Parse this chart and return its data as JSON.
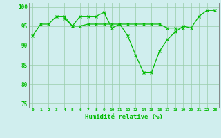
{
  "x": [
    0,
    1,
    2,
    3,
    4,
    5,
    6,
    7,
    8,
    9,
    10,
    11,
    12,
    13,
    14,
    15,
    16,
    17,
    18,
    19,
    20,
    21,
    22,
    23
  ],
  "line1": [
    92.5,
    95.5,
    95.5,
    97.5,
    97.5,
    95.0,
    97.5,
    97.5,
    97.5,
    98.5,
    94.5,
    95.5,
    92.5,
    87.5,
    83.0,
    83.0,
    88.5,
    91.5,
    93.5,
    95.0,
    94.5,
    97.5,
    99.0,
    99.0
  ],
  "line2": [
    null,
    null,
    null,
    null,
    97.0,
    95.0,
    95.0,
    95.5,
    95.5,
    95.5,
    95.5,
    95.5,
    95.5,
    95.5,
    95.5,
    95.5,
    95.5,
    94.5,
    94.5,
    94.5,
    null,
    null,
    null,
    null
  ],
  "ylim": [
    74,
    101
  ],
  "yticks": [
    75,
    80,
    85,
    90,
    95,
    100
  ],
  "xticks": [
    0,
    1,
    2,
    3,
    4,
    5,
    6,
    7,
    8,
    9,
    10,
    11,
    12,
    13,
    14,
    15,
    16,
    17,
    18,
    19,
    20,
    21,
    22,
    23
  ],
  "xlabel": "Humidité relative (%)",
  "line_color": "#00bb00",
  "bg_color": "#d0eeee",
  "grid_color": "#99ccaa",
  "spine_color": "#777777"
}
